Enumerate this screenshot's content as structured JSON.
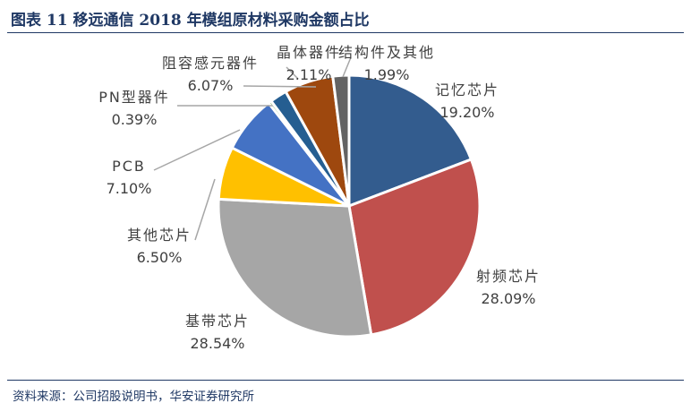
{
  "title": "图表 11  移远通信 2018 年模组原材料采购金额占比",
  "source": "资料来源：公司招股说明书，华安证券研究所",
  "chart_data": {
    "type": "pie",
    "title": "图表 11  移远通信 2018 年模组原材料采购金额占比",
    "start": "12 o'clock, clockwise",
    "slices": [
      {
        "name": "记忆芯片",
        "value": 19.2,
        "label": "19.20%",
        "color": "#335C8E"
      },
      {
        "name": "射频芯片",
        "value": 28.09,
        "label": "28.09%",
        "color": "#C0504D"
      },
      {
        "name": "基带芯片",
        "value": 28.54,
        "label": "28.54%",
        "color": "#A6A6A6"
      },
      {
        "name": "其他芯片",
        "value": 6.5,
        "label": "6.50%",
        "color": "#FFC000"
      },
      {
        "name": "PCB",
        "value": 7.1,
        "label": "7.10%",
        "color": "#4472C4"
      },
      {
        "name": "PN型器件",
        "value": 0.39,
        "label": "0.39%",
        "color": "#70AD47"
      },
      {
        "name": "晶体器件",
        "value": 2.11,
        "label": "2.11%",
        "color": "#255E91"
      },
      {
        "name": "阻容感元器件",
        "value": 6.07,
        "label": "6.07%",
        "color": "#9E480E"
      },
      {
        "name": "结构件及其他",
        "value": 1.99,
        "label": "1.99%",
        "color": "#636363"
      }
    ]
  }
}
